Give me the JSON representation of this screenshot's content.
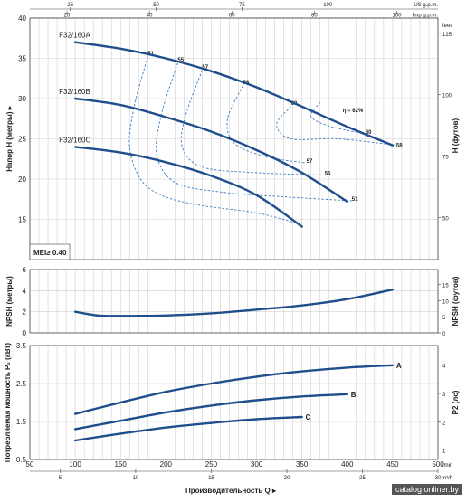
{
  "chart_data": [
    {
      "type": "line",
      "panel": "head",
      "ylabel": "Напор Н (метры)",
      "ylabel_right": "H (футов)",
      "xlim": [
        50,
        500
      ],
      "ylim": [
        10,
        40
      ],
      "yticks": [
        15,
        20,
        25,
        30,
        35,
        40
      ],
      "ylim_right_ft": [
        32.8,
        131.2
      ],
      "yticks_right": [
        50,
        75,
        100,
        125
      ],
      "grid": true,
      "annotation": "MEI≥ 0.40",
      "series": [
        {
          "name": "F32/160A",
          "x": [
            100,
            150,
            200,
            250,
            300,
            350,
            400,
            450
          ],
          "y": [
            37,
            36.2,
            35.0,
            33.4,
            31.4,
            29.0,
            26.5,
            24.2
          ]
        },
        {
          "name": "F32/160B",
          "x": [
            100,
            150,
            200,
            250,
            300,
            350,
            400
          ],
          "y": [
            30,
            29.2,
            27.7,
            25.9,
            23.6,
            20.8,
            17.2
          ]
        },
        {
          "name": "F32/160C",
          "x": [
            100,
            150,
            200,
            250,
            300,
            350
          ],
          "y": [
            24,
            23.3,
            22.1,
            20.4,
            18.0,
            14.1
          ]
        }
      ],
      "efficiency": {
        "label": "η = 62%",
        "iso_labels": [
          {
            "text": "51",
            "x": 180,
            "y": 35.4
          },
          {
            "text": "55",
            "x": 213,
            "y": 34.6
          },
          {
            "text": "57",
            "x": 240,
            "y": 33.7
          },
          {
            "text": "58",
            "x": 285,
            "y": 31.8
          },
          {
            "text": "60",
            "x": 338,
            "y": 29.2
          },
          {
            "text": "60",
            "x": 420,
            "y": 25.6
          },
          {
            "text": "58",
            "x": 454,
            "y": 24.0
          },
          {
            "text": "57",
            "x": 355,
            "y": 22.0
          },
          {
            "text": "55",
            "x": 375,
            "y": 20.5
          },
          {
            "text": "51",
            "x": 405,
            "y": 17.3
          }
        ]
      }
    },
    {
      "type": "line",
      "panel": "npsh",
      "ylabel": "NPSH (метры)",
      "ylabel_right": "NPSH (футов)",
      "xlim": [
        50,
        500
      ],
      "ylim": [
        0,
        6
      ],
      "yticks": [
        0,
        2,
        4,
        6
      ],
      "ylim_right_ft": [
        0,
        19.7
      ],
      "yticks_right": [
        0,
        5,
        10,
        15
      ],
      "grid": true,
      "series": [
        {
          "name": "",
          "x": [
            100,
            125,
            150,
            200,
            250,
            300,
            350,
            400,
            450
          ],
          "y": [
            2.0,
            1.65,
            1.6,
            1.65,
            1.85,
            2.2,
            2.6,
            3.2,
            4.1
          ]
        }
      ]
    },
    {
      "type": "line",
      "panel": "power",
      "ylabel": "Потребляемая мощность P₂ (кВт)",
      "ylabel_right": "P2 (лс)",
      "xlabel": "Производительность Q",
      "xlabel_unit": "l/min",
      "xlim": [
        50,
        500
      ],
      "ylim": [
        0.5,
        3.5
      ],
      "yticks": [
        0.5,
        1.5,
        2.5,
        3.5
      ],
      "ylim_right_hp": [
        0.67,
        4.69
      ],
      "yticks_right": [
        1,
        2,
        3,
        4
      ],
      "grid": true,
      "series": [
        {
          "name": "A",
          "x": [
            100,
            150,
            200,
            250,
            300,
            350,
            400,
            450
          ],
          "y": [
            1.7,
            2.0,
            2.28,
            2.5,
            2.68,
            2.82,
            2.92,
            2.98
          ]
        },
        {
          "name": "B",
          "x": [
            100,
            150,
            200,
            250,
            300,
            350,
            400
          ],
          "y": [
            1.3,
            1.52,
            1.74,
            1.92,
            2.06,
            2.16,
            2.22
          ]
        },
        {
          "name": "C",
          "x": [
            100,
            150,
            200,
            250,
            300,
            350
          ],
          "y": [
            1.0,
            1.18,
            1.34,
            1.46,
            1.56,
            1.62
          ]
        }
      ]
    }
  ],
  "axes": {
    "x_lpm_ticks": [
      50,
      100,
      150,
      200,
      250,
      300,
      350,
      400,
      450,
      500
    ],
    "x_m3h_label": "m³/h",
    "x_m3h_ticks": [
      5,
      10,
      15,
      20,
      25,
      30
    ],
    "top_us_label": "US g.p.m.",
    "top_imp_label": "Imp g.p.m.",
    "top_us_ticks": [
      25,
      50,
      75,
      100
    ],
    "top_imp_ticks": [
      20,
      40,
      60,
      80,
      100
    ],
    "head_right_unit": "feet"
  },
  "watermark": "catalog.onliner.by",
  "colors": {
    "pump": "#1f4e8c",
    "efficiency": "#3a7bbf",
    "grid": "#cfcfcf"
  }
}
